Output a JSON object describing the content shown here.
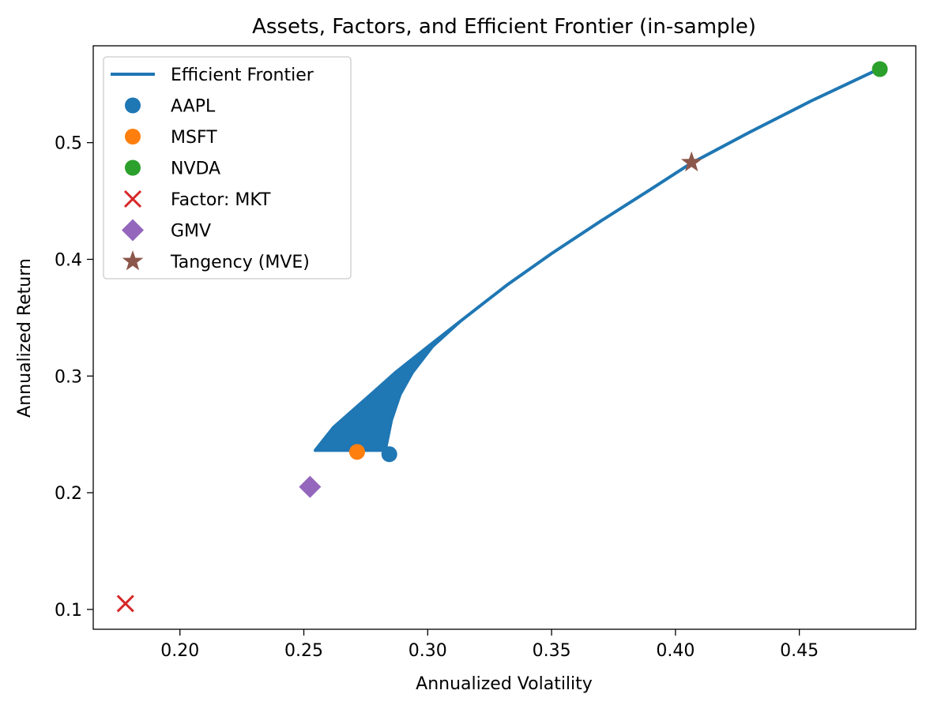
{
  "chart_data": {
    "type": "scatter",
    "title": "Assets, Factors, and Efficient Frontier (in-sample)",
    "xlabel": "Annualized Volatility",
    "ylabel": "Annualized Return",
    "xlim": [
      0.165,
      0.497
    ],
    "ylim": [
      0.083,
      0.583
    ],
    "xticks": [
      0.2,
      0.25,
      0.3,
      0.35,
      0.4,
      0.45
    ],
    "xtick_labels": [
      "0.20",
      "0.25",
      "0.30",
      "0.35",
      "0.40",
      "0.45"
    ],
    "yticks": [
      0.1,
      0.2,
      0.3,
      0.4,
      0.5
    ],
    "ytick_labels": [
      "0.1",
      "0.2",
      "0.3",
      "0.4",
      "0.5"
    ],
    "grid": false,
    "legend_position": "top-left",
    "frontier": {
      "name": "Efficient Frontier",
      "color": "#1f77b4",
      "band_inner": [
        [
          0.2545,
          0.236
        ],
        [
          0.262,
          0.256
        ],
        [
          0.27,
          0.271
        ],
        [
          0.278,
          0.286
        ],
        [
          0.287,
          0.303
        ],
        [
          0.3,
          0.325
        ],
        [
          0.315,
          0.35
        ],
        [
          0.332,
          0.378
        ],
        [
          0.35,
          0.405
        ],
        [
          0.37,
          0.433
        ],
        [
          0.39,
          0.46
        ],
        [
          0.406,
          0.482
        ],
        [
          0.43,
          0.509
        ],
        [
          0.455,
          0.536
        ],
        [
          0.482,
          0.563
        ]
      ],
      "band_outer": [
        [
          0.2545,
          0.236
        ],
        [
          0.283,
          0.236
        ],
        [
          0.2855,
          0.262
        ],
        [
          0.289,
          0.284
        ],
        [
          0.294,
          0.303
        ],
        [
          0.302,
          0.325
        ],
        [
          0.315,
          0.35
        ],
        [
          0.332,
          0.378
        ],
        [
          0.35,
          0.405
        ],
        [
          0.37,
          0.433
        ],
        [
          0.39,
          0.46
        ],
        [
          0.406,
          0.482
        ],
        [
          0.43,
          0.509
        ],
        [
          0.455,
          0.536
        ],
        [
          0.482,
          0.563
        ]
      ]
    },
    "assets": [
      {
        "name": "AAPL",
        "x": 0.2845,
        "y": 0.233,
        "color": "#1f77b4",
        "marker": "circle"
      },
      {
        "name": "MSFT",
        "x": 0.2715,
        "y": 0.235,
        "color": "#ff7f0e",
        "marker": "circle"
      },
      {
        "name": "NVDA",
        "x": 0.4825,
        "y": 0.563,
        "color": "#2ca02c",
        "marker": "circle"
      }
    ],
    "factors": [
      {
        "name": "Factor: MKT",
        "x": 0.178,
        "y": 0.105,
        "color": "#d62728",
        "marker": "x"
      }
    ],
    "portfolios": [
      {
        "name": "GMV",
        "x": 0.2525,
        "y": 0.205,
        "color": "#9467bd",
        "marker": "diamond"
      },
      {
        "name": "Tangency (MVE)",
        "x": 0.4065,
        "y": 0.483,
        "color": "#8c564b",
        "marker": "star"
      }
    ],
    "legend": [
      "Efficient Frontier",
      "AAPL",
      "MSFT",
      "NVDA",
      "Factor: MKT",
      "GMV",
      "Tangency (MVE)"
    ]
  }
}
